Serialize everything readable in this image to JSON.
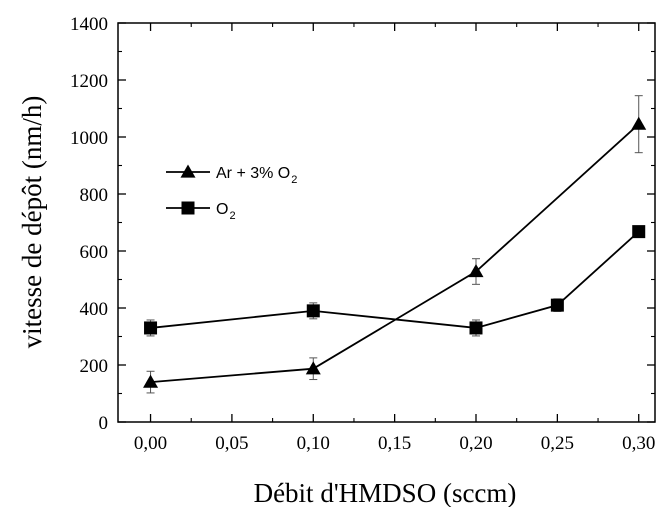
{
  "chart_data": {
    "type": "line",
    "x": [
      0.0,
      0.1,
      0.2,
      0.25,
      0.3
    ],
    "xlim": [
      -0.02,
      0.31
    ],
    "ylim": [
      0,
      1400
    ],
    "xticks": [
      "0,00",
      "0,05",
      "0,10",
      "0,15",
      "0,20",
      "0,25",
      "0,30"
    ],
    "xtick_values": [
      0.0,
      0.05,
      0.1,
      0.15,
      0.2,
      0.25,
      0.3
    ],
    "yticks": [
      "0",
      "200",
      "400",
      "600",
      "800",
      "1000",
      "1200",
      "1400"
    ],
    "ytick_values": [
      0,
      200,
      400,
      600,
      800,
      1000,
      1200,
      1400
    ],
    "xlabel": "Débit d'HMDSO (sccm)",
    "ylabel": "vitesse de dépôt (nm/h)",
    "legend_position": "upper-left",
    "series": [
      {
        "name": "Ar + 3% O2",
        "label_main": "Ar + 3% O",
        "label_sub": "2",
        "marker": "triangle",
        "x": [
          0.0,
          0.1,
          0.2,
          0.3
        ],
        "values": [
          140,
          187,
          528,
          1045
        ],
        "errors": [
          38,
          38,
          45,
          100
        ]
      },
      {
        "name": "O2",
        "label_main": "O",
        "label_sub": "2",
        "marker": "square",
        "x": [
          0.0,
          0.1,
          0.2,
          0.25,
          0.3
        ],
        "values": [
          330,
          390,
          330,
          410,
          668
        ],
        "errors": [
          28,
          28,
          28,
          22,
          18
        ]
      }
    ],
    "color": "#000000",
    "grid": false
  }
}
